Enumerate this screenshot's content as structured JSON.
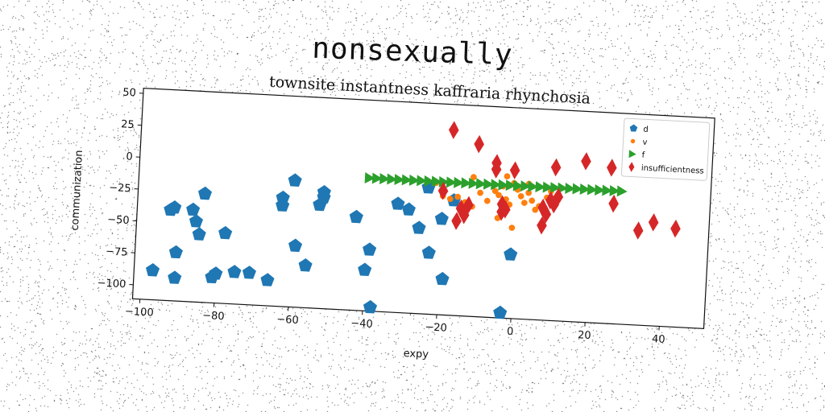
{
  "figure": {
    "suptitle": "nonsexually"
  },
  "chart_data": {
    "type": "scatter",
    "title": "townsite instantness kaffraria rhynchosia",
    "xlabel": "expy",
    "ylabel": "communization",
    "xlim": [
      -102,
      52
    ],
    "ylim": [
      -111,
      54
    ],
    "xticks": [
      -100,
      -80,
      -60,
      -40,
      -20,
      0,
      20,
      40
    ],
    "yticks": [
      50,
      25,
      0,
      -25,
      -50,
      -75,
      -100
    ],
    "grid": false,
    "legend_position": "upper-right",
    "series": [
      {
        "name": "d",
        "color": "#1f77b4",
        "marker": "pentagon",
        "points": [
          [
            -97,
            -88
          ],
          [
            -93,
            -40
          ],
          [
            -92,
            -38
          ],
          [
            -91,
            -73
          ],
          [
            -91,
            -93
          ],
          [
            -87,
            -39
          ],
          [
            -86,
            -48
          ],
          [
            -85,
            -58
          ],
          [
            -84,
            -26
          ],
          [
            -81,
            -91
          ],
          [
            -80,
            -88
          ],
          [
            -78,
            -56
          ],
          [
            -75,
            -86
          ],
          [
            -71,
            -86
          ],
          [
            -66,
            -91
          ],
          [
            -63,
            -26
          ],
          [
            -63,
            -32
          ],
          [
            -60,
            -12
          ],
          [
            -59,
            -63
          ],
          [
            -56,
            -78
          ],
          [
            -53,
            -30
          ],
          [
            -52,
            -24
          ],
          [
            -52,
            -20
          ],
          [
            -43,
            -38
          ],
          [
            -40,
            -79
          ],
          [
            -39,
            -63
          ],
          [
            -38,
            -108
          ],
          [
            -32,
            -26
          ],
          [
            -29,
            -30
          ],
          [
            -26,
            -44
          ],
          [
            -24,
            -12
          ],
          [
            -23,
            -63
          ],
          [
            -20,
            -36
          ],
          [
            -19,
            -83
          ],
          [
            -17,
            -21
          ],
          [
            -3,
            -107
          ],
          [
            -1,
            -61
          ]
        ]
      },
      {
        "name": "v",
        "color": "#ff7f0e",
        "marker": "circle",
        "points": [
          [
            -22,
            -8
          ],
          [
            -20,
            -18
          ],
          [
            -18,
            -20
          ],
          [
            -16,
            -18
          ],
          [
            -14,
            -22
          ],
          [
            -12,
            -25
          ],
          [
            -10,
            -14
          ],
          [
            -8,
            -20
          ],
          [
            -6,
            -12
          ],
          [
            -5,
            -15
          ],
          [
            -4,
            -8
          ],
          [
            -3,
            -18
          ],
          [
            -2,
            -22
          ],
          [
            -1,
            -5
          ],
          [
            0,
            -10
          ],
          [
            1,
            -15
          ],
          [
            2,
            -20
          ],
          [
            3,
            -12
          ],
          [
            4,
            -18
          ],
          [
            5,
            -25
          ],
          [
            6,
            -22
          ],
          [
            8,
            -15
          ],
          [
            9,
            -10
          ],
          [
            10,
            -18
          ],
          [
            -5,
            -33
          ],
          [
            -1,
            -40
          ],
          [
            -12,
            -2
          ],
          [
            3,
            -5
          ],
          [
            -3,
            0
          ]
        ]
      },
      {
        "name": "f",
        "color": "#2ca02c",
        "marker": "triangle-right",
        "points": [
          [
            -40,
            -7
          ],
          [
            -38,
            -7
          ],
          [
            -36,
            -7
          ],
          [
            -34,
            -7
          ],
          [
            -32,
            -7
          ],
          [
            -30,
            -7
          ],
          [
            -28,
            -7
          ],
          [
            -26,
            -7
          ],
          [
            -24,
            -7
          ],
          [
            -22,
            -7
          ],
          [
            -20,
            -7
          ],
          [
            -18,
            -7
          ],
          [
            -16,
            -7
          ],
          [
            -14,
            -7
          ],
          [
            -12,
            -7
          ],
          [
            -10,
            -7
          ],
          [
            -8,
            -7
          ],
          [
            -6,
            -7
          ],
          [
            -4,
            -7
          ],
          [
            -2,
            -7
          ],
          [
            0,
            -7
          ],
          [
            2,
            -7
          ],
          [
            4,
            -7
          ],
          [
            6,
            -7
          ],
          [
            8,
            -7
          ],
          [
            10,
            -7
          ],
          [
            12,
            -7
          ],
          [
            14,
            -7
          ],
          [
            16,
            -7
          ],
          [
            18,
            -7
          ],
          [
            20,
            -7
          ],
          [
            22,
            -7
          ],
          [
            24,
            -7
          ],
          [
            26,
            -7
          ],
          [
            28,
            -7
          ]
        ]
      },
      {
        "name": "insufficientness",
        "color": "#d62728",
        "marker": "diamond",
        "points": [
          [
            -20,
            -14
          ],
          [
            -18,
            34
          ],
          [
            -16,
            -37
          ],
          [
            -15,
            -27
          ],
          [
            -14,
            -32
          ],
          [
            -13,
            -24
          ],
          [
            -11,
            24
          ],
          [
            -6,
            10
          ],
          [
            -6,
            5
          ],
          [
            -4,
            -22
          ],
          [
            -4,
            -28
          ],
          [
            -3,
            -26
          ],
          [
            -1,
            5
          ],
          [
            7,
            -37
          ],
          [
            7,
            -23
          ],
          [
            8,
            -28
          ],
          [
            9,
            -17
          ],
          [
            10,
            -20
          ],
          [
            10,
            9
          ],
          [
            11,
            -14
          ],
          [
            18,
            15
          ],
          [
            25,
            11
          ],
          [
            26,
            -17
          ],
          [
            33,
            -37
          ],
          [
            37,
            -30
          ],
          [
            43,
            -34
          ]
        ]
      }
    ]
  }
}
